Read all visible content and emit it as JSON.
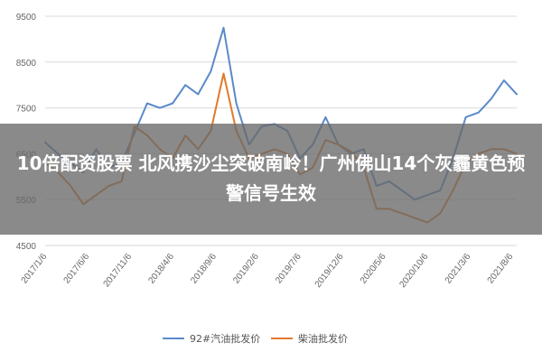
{
  "headline": "10倍配资股票 北风携沙尘突破南岭！广州佛山14个灰霾黄色预警信号生效",
  "chart_data": {
    "type": "line",
    "title": "",
    "xlabel": "",
    "ylabel": "",
    "ylim": [
      4500,
      9500
    ],
    "yticks": [
      "9500",
      "8500",
      "7500",
      "6500",
      "5500",
      "4500"
    ],
    "xticks": [
      "2017/1/6",
      "2017/6/6",
      "2017/11/6",
      "2018/4/6",
      "2018/9/6",
      "2019/2/6",
      "2019/7/6",
      "2019/12/6",
      "2020/5/6",
      "2020/10/6",
      "2021/3/6",
      "2021/8/6"
    ],
    "grid": "horizontal",
    "legend_position": "bottom",
    "x": [
      "2017/1/6",
      "2017/2/20",
      "2017/4/6",
      "2017/5/21",
      "2017/7/6",
      "2017/8/20",
      "2017/10/6",
      "2017/11/20",
      "2018/1/6",
      "2018/2/20",
      "2018/4/6",
      "2018/5/21",
      "2018/7/6",
      "2018/8/20",
      "2018/10/6",
      "2018/11/20",
      "2019/1/6",
      "2019/2/20",
      "2019/4/6",
      "2019/5/21",
      "2019/7/6",
      "2019/8/20",
      "2019/10/6",
      "2019/11/20",
      "2020/1/6",
      "2020/2/20",
      "2020/4/6",
      "2020/5/21",
      "2020/7/6",
      "2020/8/20",
      "2020/10/6",
      "2020/11/20",
      "2021/1/6",
      "2021/2/20",
      "2021/4/6",
      "2021/5/21",
      "2021/7/6",
      "2021/8/20"
    ],
    "series": [
      {
        "name": "92#汽油批发价",
        "color": "#5b8ac9",
        "values": [
          6750,
          6500,
          6300,
          6100,
          6600,
          6200,
          6300,
          6950,
          7600,
          7500,
          7600,
          8000,
          7800,
          8300,
          9250,
          7600,
          6700,
          7100,
          7150,
          7000,
          6400,
          6700,
          7300,
          6700,
          6500,
          6600,
          5800,
          5900,
          5700,
          5500,
          5600,
          5700,
          6400,
          7300,
          7400,
          7700,
          8100,
          7800
        ]
      },
      {
        "name": "柴油批发价",
        "color": "#e07a2c",
        "values": [
          6300,
          6100,
          5800,
          5400,
          5600,
          5800,
          5900,
          7100,
          6900,
          6600,
          6400,
          6900,
          6600,
          7000,
          8250,
          7000,
          6400,
          6500,
          6600,
          6500,
          6050,
          6200,
          6800,
          6700,
          6550,
          6200,
          5300,
          5300,
          5200,
          5100,
          5000,
          5200,
          5700,
          6300,
          6500,
          6600,
          6600,
          6500
        ]
      }
    ]
  }
}
